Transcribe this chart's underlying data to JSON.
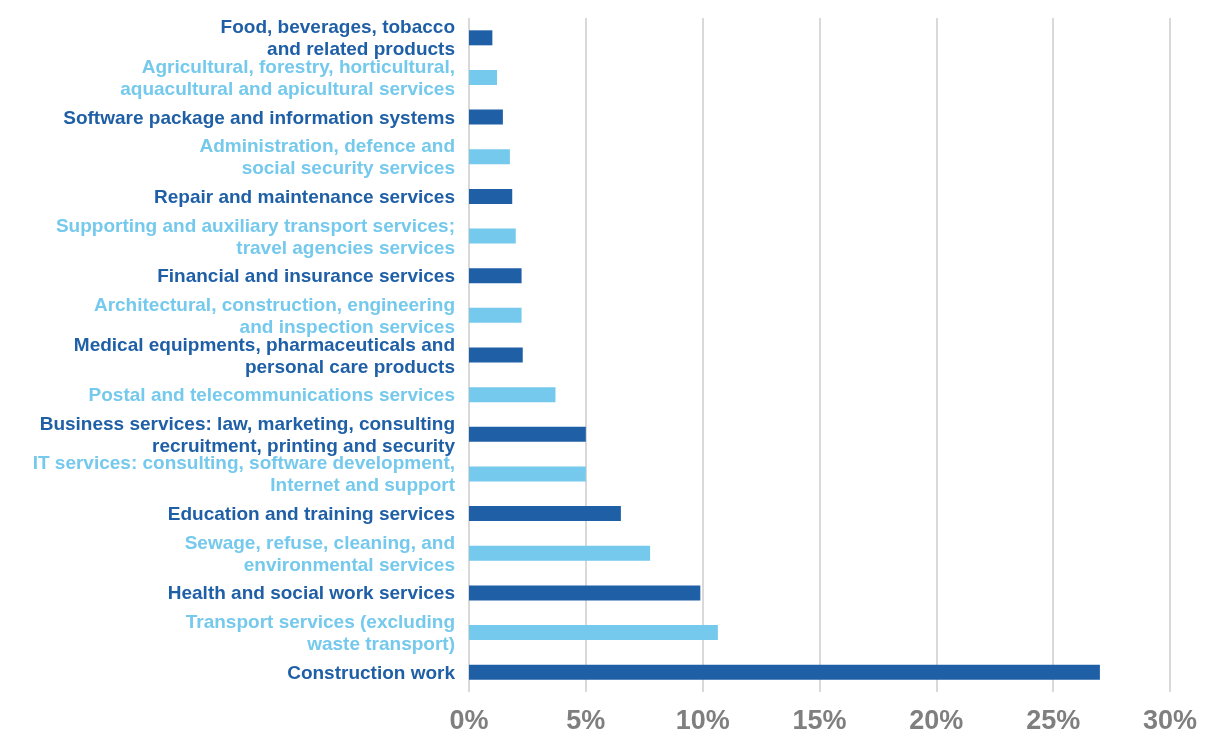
{
  "chart_data": {
    "type": "bar",
    "orientation": "horizontal",
    "categories": [
      "Food, beverages, tobacco\nand related products",
      "Agricultural, forestry, horticultural,\naquacultural and apicultural services",
      "Software package and information systems",
      "Administration, defence and\nsocial security services",
      "Repair and maintenance services",
      "Supporting and auxiliary transport services;\ntravel agencies services",
      "Financial and insurance services",
      "Architectural, construction, engineering\nand inspection services",
      "Medical equipments, pharmaceuticals and\npersonal care products",
      "Postal and telecommunications services",
      "Business services: law, marketing, consulting\nrecruitment, printing and security",
      "IT services: consulting, software development,\nInternet and support",
      "Education and training services",
      "Sewage, refuse, cleaning, and\nenvironmental services",
      "Health and social work services",
      "Transport services (excluding\nwaste transport)",
      "Construction work"
    ],
    "values": [
      1.0,
      1.2,
      1.45,
      1.75,
      1.85,
      2.0,
      2.25,
      2.25,
      2.3,
      3.7,
      5.0,
      5.0,
      6.5,
      7.75,
      9.9,
      10.65,
      27.0
    ],
    "colors": [
      "#1f5fa6",
      "#74c9ec",
      "#1f5fa6",
      "#74c9ec",
      "#1f5fa6",
      "#74c9ec",
      "#1f5fa6",
      "#74c9ec",
      "#1f5fa6",
      "#74c9ec",
      "#1f5fa6",
      "#74c9ec",
      "#1f5fa6",
      "#74c9ec",
      "#1f5fa6",
      "#74c9ec",
      "#1f5fa6"
    ],
    "xlim": [
      0,
      30
    ],
    "xticks": [
      {
        "value": 0,
        "label": "0%"
      },
      {
        "value": 5,
        "label": "5%"
      },
      {
        "value": 10,
        "label": "10%"
      },
      {
        "value": 15,
        "label": "15%"
      },
      {
        "value": 20,
        "label": "20%"
      },
      {
        "value": 25,
        "label": "25%"
      },
      {
        "value": 30,
        "label": "30%"
      }
    ],
    "grid": "x"
  }
}
